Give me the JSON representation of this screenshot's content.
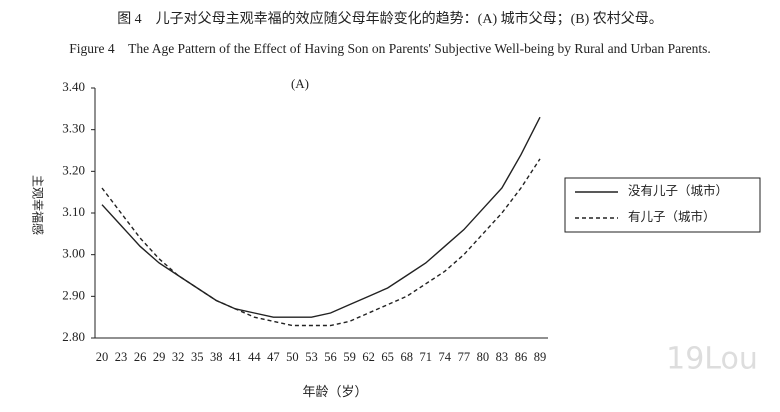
{
  "chart_data": {
    "type": "line",
    "caption_zh": "图 4　儿子对父母主观幸福的效应随父母年龄变化的趋势：(A) 城市父母；(B) 农村父母。",
    "caption_en": "Figure 4　The Age Pattern of the Effect of Having Son on Parents' Subjective Well-being by Rural and Urban Parents.",
    "panel_label": "(A)",
    "y_label": "主观幸福感",
    "x_label": "年龄（岁）",
    "watermark": "19Lou",
    "categories": [
      "20",
      "23",
      "26",
      "29",
      "32",
      "35",
      "38",
      "41",
      "44",
      "47",
      "50",
      "53",
      "56",
      "59",
      "62",
      "65",
      "68",
      "71",
      "74",
      "77",
      "80",
      "83",
      "86",
      "89"
    ],
    "series": [
      {
        "name": "没有儿子（城市）",
        "color": "#222222",
        "dash": false,
        "values": [
          3.12,
          3.07,
          3.02,
          2.98,
          2.95,
          2.92,
          2.89,
          2.87,
          2.86,
          2.85,
          2.85,
          2.85,
          2.86,
          2.88,
          2.9,
          2.92,
          2.95,
          2.98,
          3.02,
          3.06,
          3.11,
          3.16,
          3.24,
          3.33
        ]
      },
      {
        "name": "有儿子（城市）",
        "color": "#222222",
        "dash": true,
        "values": [
          3.16,
          3.1,
          3.04,
          2.99,
          2.95,
          2.92,
          2.89,
          2.87,
          2.85,
          2.84,
          2.83,
          2.83,
          2.83,
          2.84,
          2.86,
          2.88,
          2.9,
          2.93,
          2.96,
          3.0,
          3.05,
          3.1,
          3.16,
          3.23
        ]
      }
    ],
    "ylim": [
      2.8,
      3.4
    ],
    "yticks": [
      {
        "value": 2.8,
        "label": "2.80"
      },
      {
        "value": 2.9,
        "label": "2.90"
      },
      {
        "value": 3.0,
        "label": "3.00"
      },
      {
        "value": 3.1,
        "label": "3.10"
      },
      {
        "value": 3.2,
        "label": "3.20"
      },
      {
        "value": 3.3,
        "label": "3.30"
      },
      {
        "value": 3.4,
        "label": "3.40"
      }
    ],
    "grid": false
  }
}
